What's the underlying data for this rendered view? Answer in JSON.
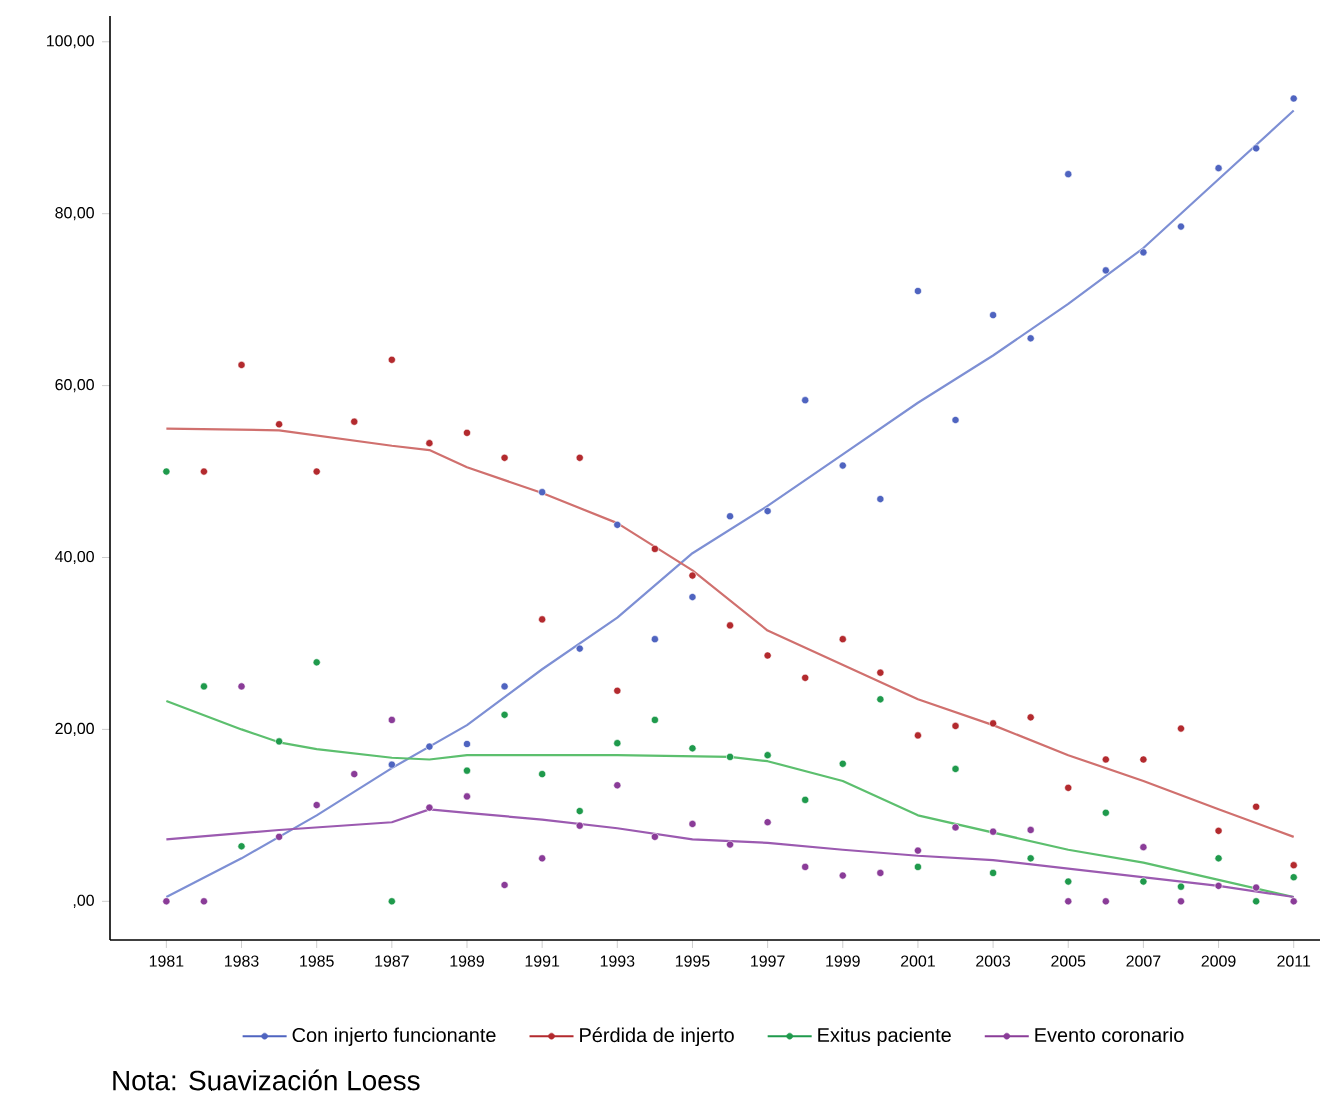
{
  "chart_data": {
    "type": "scatter",
    "legend": "bottom",
    "xlim": [
      1979.5,
      2011.7
    ],
    "ylim": [
      -4.5,
      103
    ],
    "xticks": [
      1981,
      1983,
      1985,
      1987,
      1989,
      1991,
      1993,
      1995,
      1997,
      1999,
      2001,
      2003,
      2005,
      2007,
      2009,
      2011
    ],
    "yticks": [
      {
        "value": 0,
        "label": ",00"
      },
      {
        "value": 20,
        "label": "20,00"
      },
      {
        "value": 40,
        "label": "40,00"
      },
      {
        "value": 60,
        "label": "60,00"
      },
      {
        "value": 80,
        "label": "80,00"
      },
      {
        "value": 100,
        "label": "100,00"
      }
    ],
    "annotations": [
      "Nota: Suavización Loess"
    ],
    "series": [
      {
        "name": "Con injerto funcionante",
        "color": "#4f64c0",
        "marker": "circle",
        "x": [
          1987,
          1988,
          1989,
          1990,
          1991,
          1992,
          1993,
          1994,
          1995,
          1996,
          1997,
          1998,
          1999,
          2000,
          2001,
          2002,
          2003,
          2004,
          2005,
          2006,
          2007,
          2008,
          2009,
          2010,
          2011
        ],
        "values": [
          15.9,
          18.0,
          18.3,
          25.0,
          47.6,
          29.4,
          43.8,
          30.5,
          35.4,
          44.8,
          45.4,
          58.3,
          50.7,
          46.8,
          71.0,
          56.0,
          68.2,
          65.5,
          84.6,
          73.4,
          75.5,
          78.5,
          85.3,
          87.6,
          93.4
        ]
      },
      {
        "name": "Pérdida de injerto",
        "color": "#b32a2e",
        "marker": "circle",
        "x": [
          1982,
          1983,
          1984,
          1985,
          1986,
          1987,
          1988,
          1989,
          1990,
          1991,
          1992,
          1993,
          1994,
          1995,
          1996,
          1997,
          1998,
          1999,
          2000,
          2001,
          2002,
          2003,
          2004,
          2005,
          2006,
          2007,
          2008,
          2009,
          2010,
          2011
        ],
        "values": [
          50.0,
          62.4,
          55.5,
          50.0,
          55.8,
          63.0,
          53.3,
          54.5,
          51.6,
          32.8,
          51.6,
          24.5,
          41.0,
          37.9,
          32.1,
          28.6,
          26.0,
          30.5,
          26.6,
          19.3,
          20.4,
          20.7,
          21.4,
          13.2,
          16.5,
          16.5,
          20.1,
          8.2,
          11.0,
          4.2
        ]
      },
      {
        "name": "Exitus paciente",
        "color": "#1f9a4c",
        "marker": "circle",
        "x": [
          1981,
          1982,
          1983,
          1984,
          1985,
          1987,
          1989,
          1990,
          1991,
          1992,
          1993,
          1994,
          1995,
          1996,
          1997,
          1998,
          1999,
          2000,
          2001,
          2002,
          2003,
          2004,
          2005,
          2006,
          2007,
          2008,
          2009,
          2010,
          2011
        ],
        "values": [
          50.0,
          25.0,
          6.4,
          18.6,
          27.8,
          0,
          15.2,
          21.7,
          14.8,
          10.5,
          18.4,
          21.1,
          17.8,
          16.8,
          17.0,
          11.8,
          16.0,
          23.5,
          4.0,
          15.4,
          3.3,
          5.0,
          2.3,
          10.3,
          2.3,
          1.7,
          5.0,
          0,
          2.8
        ]
      },
      {
        "name": "Evento coronario",
        "color": "#8a3c98",
        "marker": "circle",
        "x": [
          1981,
          1982,
          1983,
          1984,
          1985,
          1986,
          1987,
          1988,
          1989,
          1990,
          1991,
          1992,
          1993,
          1994,
          1995,
          1996,
          1997,
          1998,
          1999,
          2000,
          2001,
          2002,
          2003,
          2004,
          2005,
          2006,
          2007,
          2008,
          2009,
          2010,
          2011
        ],
        "values": [
          0,
          0,
          25.0,
          7.5,
          11.2,
          14.8,
          21.1,
          10.9,
          12.2,
          1.9,
          5.0,
          8.8,
          13.5,
          7.5,
          9.0,
          6.6,
          9.2,
          4.0,
          3.0,
          3.3,
          5.9,
          8.6,
          8.1,
          8.3,
          0,
          0,
          6.3,
          0,
          1.8,
          1.6,
          0
        ]
      },
      {
        "type": "line",
        "marker": "none",
        "color": "#7d8fd4",
        "x": [
          1981,
          1983,
          1985,
          1987,
          1989,
          1991,
          1993,
          1995,
          1997,
          1999,
          2001,
          2003,
          2005,
          2007,
          2009,
          2011
        ],
        "values": [
          0.5,
          5,
          10,
          15.5,
          20.5,
          27,
          33,
          40.5,
          46,
          52,
          58,
          63.5,
          69.5,
          76,
          84,
          92
        ]
      },
      {
        "type": "line",
        "marker": "none",
        "color": "#d0706e",
        "x": [
          1981,
          1984,
          1987,
          1988,
          1989,
          1991,
          1993,
          1995,
          1997,
          1999,
          2001,
          2003,
          2005,
          2007,
          2009,
          2011
        ],
        "values": [
          55,
          54.8,
          53,
          52.5,
          50.5,
          47.5,
          44,
          38.5,
          31.5,
          27.5,
          23.5,
          20.5,
          17,
          14,
          10.7,
          7.5
        ]
      },
      {
        "type": "line",
        "marker": "none",
        "color": "#5cbf6e",
        "x": [
          1981,
          1983,
          1984,
          1985,
          1987,
          1988,
          1989,
          1993,
          1996,
          1997,
          1999,
          2001,
          2003,
          2005,
          2007,
          2009,
          2011
        ],
        "values": [
          23.3,
          20,
          18.5,
          17.7,
          16.7,
          16.5,
          17,
          17,
          16.8,
          16.3,
          14,
          10,
          8,
          6,
          4.5,
          2.5,
          0.5
        ]
      },
      {
        "type": "line",
        "marker": "none",
        "color": "#9b5ab0",
        "x": [
          1981,
          1984,
          1987,
          1988,
          1989,
          1991,
          1993,
          1995,
          1997,
          1999,
          2001,
          2003,
          2005,
          2007,
          2009,
          2011
        ],
        "values": [
          7.2,
          8.3,
          9.2,
          10.7,
          10.3,
          9.5,
          8.5,
          7.2,
          6.8,
          6.0,
          5.3,
          4.8,
          3.8,
          2.8,
          1.8,
          0.5
        ]
      }
    ]
  }
}
